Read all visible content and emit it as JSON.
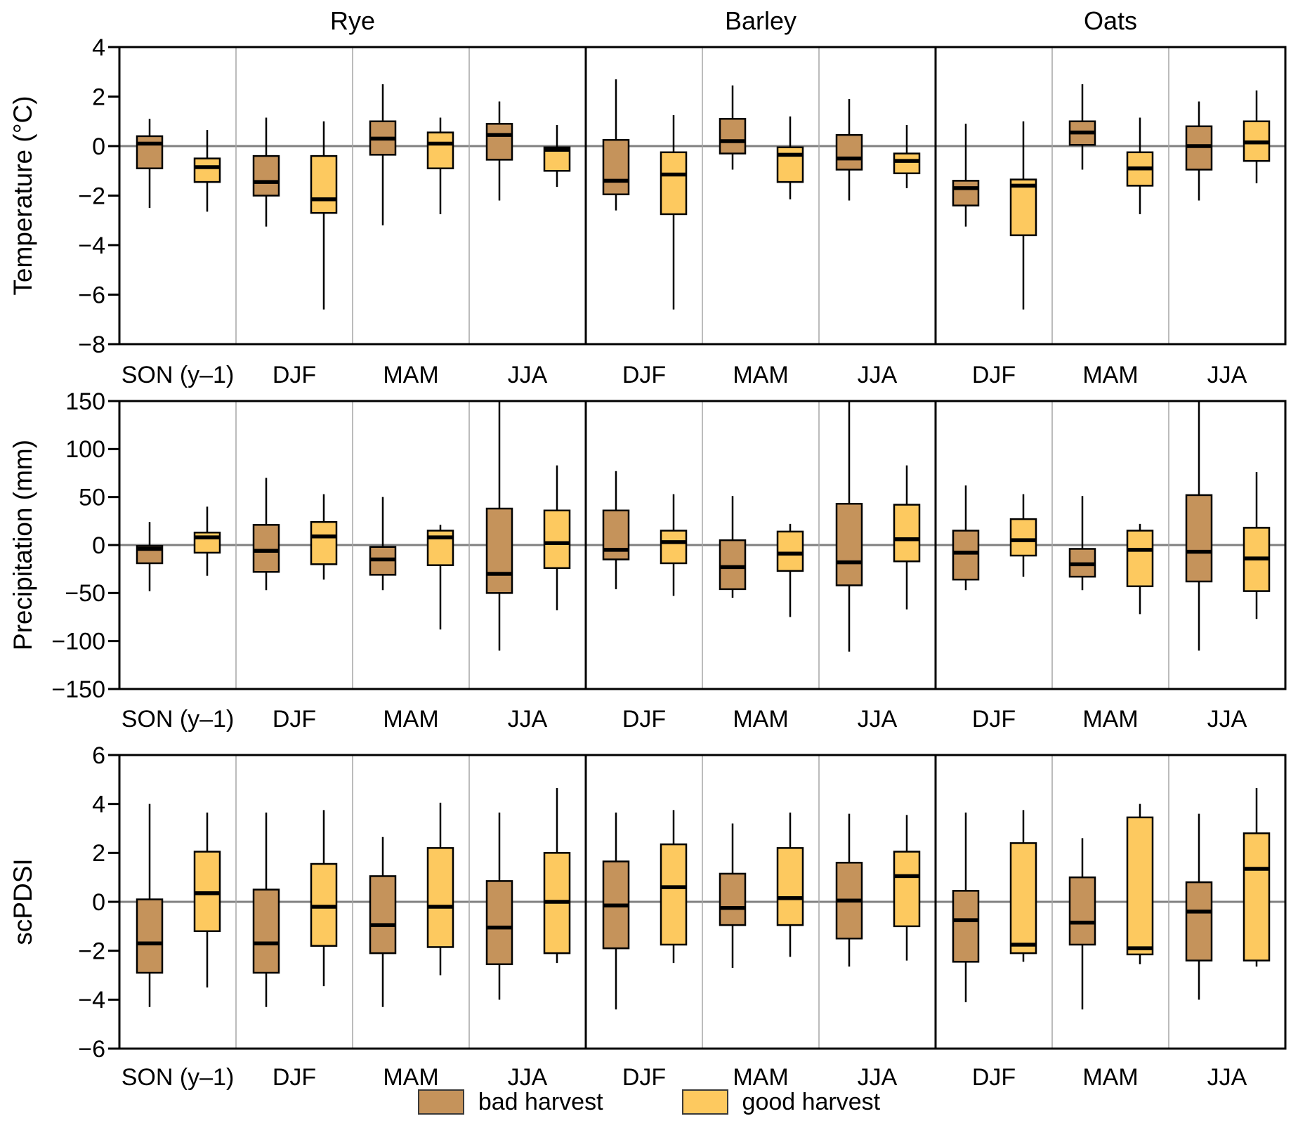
{
  "chart_data": {
    "type": "boxplot",
    "description": "Seasonal climate anomalies for bad vs good harvest years, grouped boxplots",
    "legend": [
      {
        "label": "bad harvest",
        "color": "#C5935B"
      },
      {
        "label": "good harvest",
        "color": "#FDC95F"
      }
    ],
    "sections": [
      {
        "title": "Rye",
        "seasons": [
          "SON (y–1)",
          "DJF",
          "MAM",
          "JJA"
        ]
      },
      {
        "title": "Barley",
        "seasons": [
          "DJF",
          "MAM",
          "JJA"
        ]
      },
      {
        "title": "Oats",
        "seasons": [
          "DJF",
          "MAM",
          "JJA"
        ]
      }
    ],
    "box_stats_order": "[whisker_low, q1, median, q3, whisker_high]",
    "grid": {
      "zero_line": true,
      "legend_position": "bottom-center"
    },
    "colors": {
      "bad": "#C5935B",
      "good": "#FDC95F",
      "zero_line": "#808080",
      "separator_thin": "#A6A6A6",
      "separator_thick": "#000000",
      "box_border": "#000000",
      "panel_border": "#000000"
    },
    "rows": [
      {
        "ylabel": "Temperature (°C)",
        "ylim": [
          -8,
          4
        ],
        "ytick_values": [
          4,
          2,
          0,
          -2,
          -4,
          -6,
          -8
        ],
        "ytick_labels": [
          "4",
          "2",
          "0",
          "−2",
          "−4",
          "−6",
          "−8"
        ],
        "boxes": {
          "Rye": {
            "SON (y–1)": {
              "bad": [
                -2.5,
                -0.9,
                0.1,
                0.4,
                1.1
              ],
              "good": [
                -2.65,
                -1.45,
                -0.85,
                -0.5,
                0.65
              ]
            },
            "DJF": {
              "bad": [
                -3.25,
                -2.0,
                -1.45,
                -0.4,
                1.15
              ],
              "good": [
                -6.6,
                -2.7,
                -2.15,
                -0.4,
                1.0
              ]
            },
            "MAM": {
              "bad": [
                -3.2,
                -0.35,
                0.3,
                1.0,
                2.5
              ],
              "good": [
                -2.75,
                -0.9,
                0.1,
                0.55,
                1.15
              ]
            },
            "JJA": {
              "bad": [
                -2.2,
                -0.55,
                0.45,
                0.9,
                1.8
              ],
              "good": [
                -1.65,
                -1.0,
                -0.15,
                -0.05,
                0.85
              ]
            }
          },
          "Barley": {
            "DJF": {
              "bad": [
                -2.6,
                -1.95,
                -1.4,
                0.25,
                2.7
              ],
              "good": [
                -6.6,
                -2.75,
                -1.15,
                -0.25,
                1.25
              ]
            },
            "MAM": {
              "bad": [
                -0.95,
                -0.3,
                0.2,
                1.1,
                2.45
              ],
              "good": [
                -2.15,
                -1.45,
                -0.35,
                -0.05,
                1.2
              ]
            },
            "JJA": {
              "bad": [
                -2.2,
                -0.95,
                -0.5,
                0.45,
                1.9
              ],
              "good": [
                -1.7,
                -1.1,
                -0.6,
                -0.3,
                0.85
              ]
            }
          },
          "Oats": {
            "DJF": {
              "bad": [
                -3.25,
                -2.4,
                -1.7,
                -1.4,
                0.9
              ],
              "good": [
                -6.6,
                -3.6,
                -1.6,
                -1.35,
                1.0
              ]
            },
            "MAM": {
              "bad": [
                -0.95,
                0.05,
                0.55,
                1.0,
                2.5
              ],
              "good": [
                -2.75,
                -1.6,
                -0.9,
                -0.25,
                1.15
              ]
            },
            "JJA": {
              "bad": [
                -2.2,
                -0.95,
                0.0,
                0.8,
                1.8
              ],
              "good": [
                -1.5,
                -0.6,
                0.15,
                1.0,
                2.25
              ]
            }
          }
        }
      },
      {
        "ylabel": "Precipitation (mm)",
        "ylim": [
          -150,
          150
        ],
        "ytick_values": [
          150,
          100,
          50,
          0,
          -50,
          -100,
          -150
        ],
        "ytick_labels": [
          "150",
          "100",
          "50",
          "0",
          "−50",
          "−100",
          "−150"
        ],
        "boxes": {
          "Rye": {
            "SON (y–1)": {
              "bad": [
                -48,
                -19,
                -4,
                -1,
                24
              ],
              "good": [
                -32,
                -8,
                8,
                13,
                40
              ]
            },
            "DJF": {
              "bad": [
                -47,
                -28,
                -6,
                21,
                70
              ],
              "good": [
                -36,
                -20,
                9,
                24,
                53
              ]
            },
            "MAM": {
              "bad": [
                -47,
                -31,
                -15,
                -2,
                50
              ],
              "good": [
                -88,
                -21,
                8,
                15,
                21
              ]
            },
            "JJA": {
              "bad": [
                -110,
                -50,
                -30,
                38,
                150
              ],
              "good": [
                -68,
                -24,
                2,
                36,
                83
              ]
            }
          },
          "Barley": {
            "DJF": {
              "bad": [
                -46,
                -15,
                -5,
                36,
                77
              ],
              "good": [
                -53,
                -19,
                3,
                15,
                53
              ]
            },
            "MAM": {
              "bad": [
                -55,
                -46,
                -23,
                5,
                51
              ],
              "good": [
                -75,
                -27,
                -9,
                14,
                22
              ]
            },
            "JJA": {
              "bad": [
                -111,
                -42,
                -18,
                43,
                150
              ],
              "good": [
                -67,
                -17,
                6,
                42,
                83
              ]
            }
          },
          "Oats": {
            "DJF": {
              "bad": [
                -47,
                -36,
                -8,
                15,
                62
              ],
              "good": [
                -33,
                -11,
                5,
                27,
                53
              ]
            },
            "MAM": {
              "bad": [
                -47,
                -33,
                -20,
                -4,
                51
              ],
              "good": [
                -72,
                -43,
                -5,
                15,
                22
              ]
            },
            "JJA": {
              "bad": [
                -110,
                -38,
                -7,
                52,
                150
              ],
              "good": [
                -77,
                -48,
                -14,
                18,
                76
              ]
            }
          }
        }
      },
      {
        "ylabel": "scPDSI",
        "ylim": [
          -6,
          6
        ],
        "ytick_values": [
          6,
          4,
          2,
          0,
          -2,
          -4,
          -6
        ],
        "ytick_labels": [
          "6",
          "4",
          "2",
          "0",
          "−2",
          "−4",
          "−6"
        ],
        "boxes": {
          "Rye": {
            "SON (y–1)": {
              "bad": [
                -4.3,
                -2.9,
                -1.7,
                0.1,
                4.0
              ],
              "good": [
                -3.5,
                -1.2,
                0.35,
                2.05,
                3.65
              ]
            },
            "DJF": {
              "bad": [
                -4.3,
                -2.9,
                -1.7,
                0.5,
                3.65
              ],
              "good": [
                -3.45,
                -1.8,
                -0.2,
                1.55,
                3.75
              ]
            },
            "MAM": {
              "bad": [
                -4.3,
                -2.1,
                -0.95,
                1.05,
                2.65
              ],
              "good": [
                -3.0,
                -1.85,
                -0.2,
                2.2,
                4.05
              ]
            },
            "JJA": {
              "bad": [
                -4.0,
                -2.55,
                -1.05,
                0.85,
                3.65
              ],
              "good": [
                -2.5,
                -2.1,
                0.0,
                2.0,
                4.65
              ]
            }
          },
          "Barley": {
            "DJF": {
              "bad": [
                -4.4,
                -1.9,
                -0.15,
                1.65,
                3.65
              ],
              "good": [
                -2.5,
                -1.75,
                0.6,
                2.35,
                3.75
              ]
            },
            "MAM": {
              "bad": [
                -2.7,
                -0.95,
                -0.25,
                1.15,
                3.2
              ],
              "good": [
                -2.25,
                -0.95,
                0.15,
                2.2,
                3.65
              ]
            },
            "JJA": {
              "bad": [
                -2.65,
                -1.5,
                0.05,
                1.6,
                3.6
              ],
              "good": [
                -2.4,
                -1.0,
                1.05,
                2.05,
                3.55
              ]
            }
          },
          "Oats": {
            "DJF": {
              "bad": [
                -4.1,
                -2.45,
                -0.75,
                0.45,
                3.65
              ],
              "good": [
                -2.45,
                -2.1,
                -1.75,
                2.4,
                3.75
              ]
            },
            "MAM": {
              "bad": [
                -4.4,
                -1.75,
                -0.85,
                1.0,
                2.6
              ],
              "good": [
                -2.55,
                -2.15,
                -1.9,
                3.45,
                4.0
              ]
            },
            "JJA": {
              "bad": [
                -4.0,
                -2.4,
                -0.4,
                0.8,
                3.6
              ],
              "good": [
                -2.65,
                -2.4,
                1.35,
                2.8,
                4.65
              ]
            }
          }
        }
      }
    ]
  }
}
